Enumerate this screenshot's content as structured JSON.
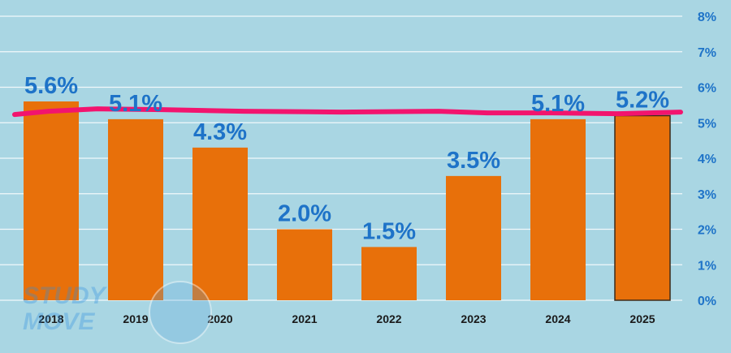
{
  "chart_data": {
    "type": "bar",
    "categories": [
      "2018",
      "2019",
      "2020",
      "2021",
      "2022",
      "2023",
      "2024",
      "2025"
    ],
    "values": [
      5.6,
      5.1,
      4.3,
      2.0,
      1.5,
      3.5,
      5.1,
      5.2
    ],
    "data_labels": [
      "5.6%",
      "5.1%",
      "4.3%",
      "2.0%",
      "1.5%",
      "3.5%",
      "5.1%",
      "5.2%"
    ],
    "ylim": [
      0,
      8
    ],
    "yticks": [
      "0%",
      "1%",
      "2%",
      "3%",
      "4%",
      "5%",
      "6%",
      "7%",
      "8%"
    ],
    "y_axis_position": "right",
    "grid": true,
    "reference_line": {
      "value": 5.3
    },
    "colors": {
      "background": "#a9d6e3",
      "bar": "#e8700a",
      "reference_line": "#f2146e",
      "label": "#1e73c8",
      "grid": "#ffffff"
    }
  },
  "watermark": {
    "line1": "STUDY",
    "line2": "MOVE"
  }
}
